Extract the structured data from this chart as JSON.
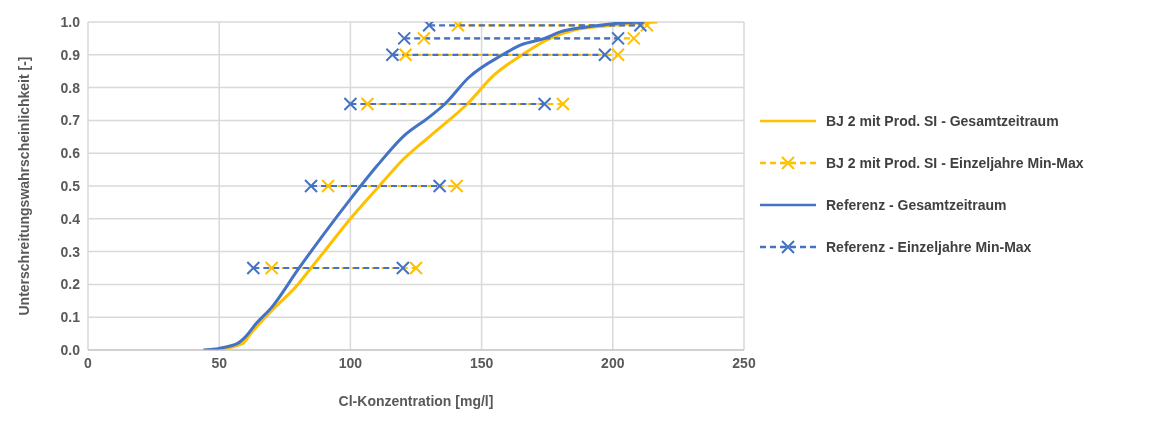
{
  "chart_data": {
    "type": "line",
    "xlabel": "Cl-Konzentration [mg/l]",
    "ylabel": "Unterschreitungswahrscheinlichkeit [-]",
    "xlim": [
      0,
      250
    ],
    "xticks": [
      0,
      50,
      100,
      150,
      200,
      250
    ],
    "ylim": [
      0,
      1
    ],
    "yticks": [
      {
        "value": 0,
        "label": "0.0"
      },
      {
        "value": 0.1,
        "label": "0.1"
      },
      {
        "value": 0.2,
        "label": "0.2"
      },
      {
        "value": 0.3,
        "label": "0.3"
      },
      {
        "value": 0.4,
        "label": "0.4"
      },
      {
        "value": 0.5,
        "label": "0.5"
      },
      {
        "value": 0.6,
        "label": "0.6"
      },
      {
        "value": 0.7,
        "label": "0.7"
      },
      {
        "value": 0.8,
        "label": "0.8"
      },
      {
        "value": 0.9,
        "label": "0.9"
      },
      {
        "value": 1,
        "label": "1.0"
      }
    ],
    "grid": true,
    "legend": "right",
    "series": [
      {
        "name": "BJ 2 mit Prod. SI - Gesamtzeitraum",
        "color": "#ffc000",
        "marker": "none",
        "line_style": "solid",
        "x": [
          45,
          52,
          59,
          62,
          70,
          80,
          85,
          90,
          100,
          111,
          120,
          130,
          144.5,
          155,
          165.5,
          176,
          185,
          200,
          210,
          217
        ],
        "values": [
          0,
          0.005,
          0.02,
          0.05,
          0.12,
          0.2,
          0.25,
          0.3,
          0.4,
          0.5,
          0.58,
          0.65,
          0.75,
          0.84,
          0.9,
          0.95,
          0.975,
          0.99,
          0.997,
          1.0
        ]
      },
      {
        "name": "BJ 2 mit Prod. SI - Einzeljahre Min-Max",
        "color": "#ffc000",
        "marker": "cross",
        "line_style": "dashed",
        "x": [
          70,
          125,
          null,
          91.5,
          140.5,
          null,
          106.5,
          181,
          null,
          121,
          202,
          null,
          128,
          208,
          null,
          141,
          213
        ],
        "values": [
          0.25,
          0.25,
          null,
          0.5,
          0.5,
          null,
          0.75,
          0.75,
          null,
          0.9,
          0.9,
          null,
          0.95,
          0.95,
          null,
          0.99,
          0.99
        ]
      },
      {
        "name": "Referenz - Gesamtzeitraum",
        "color": "#4472c4",
        "marker": "none",
        "line_style": "solid",
        "x": [
          44,
          50,
          57,
          60,
          64,
          70,
          80,
          90,
          100,
          110,
          120,
          130,
          136,
          145,
          158,
          165,
          174,
          180,
          190,
          200,
          212
        ],
        "values": [
          0,
          0.005,
          0.02,
          0.04,
          0.08,
          0.13,
          0.245,
          0.355,
          0.46,
          0.56,
          0.65,
          0.71,
          0.75,
          0.83,
          0.9,
          0.93,
          0.95,
          0.97,
          0.985,
          0.995,
          1.0
        ]
      },
      {
        "name": "Referenz - Einzeljahre Min-Max",
        "color": "#4472c4",
        "marker": "cross",
        "line_style": "dashed",
        "x": [
          63,
          120,
          null,
          85,
          134,
          null,
          100,
          174,
          null,
          116,
          197,
          null,
          120.5,
          202,
          null,
          130,
          210.5
        ],
        "values": [
          0.25,
          0.25,
          null,
          0.5,
          0.5,
          null,
          0.75,
          0.75,
          null,
          0.9,
          0.9,
          null,
          0.95,
          0.95,
          null,
          0.99,
          0.99
        ]
      }
    ]
  }
}
